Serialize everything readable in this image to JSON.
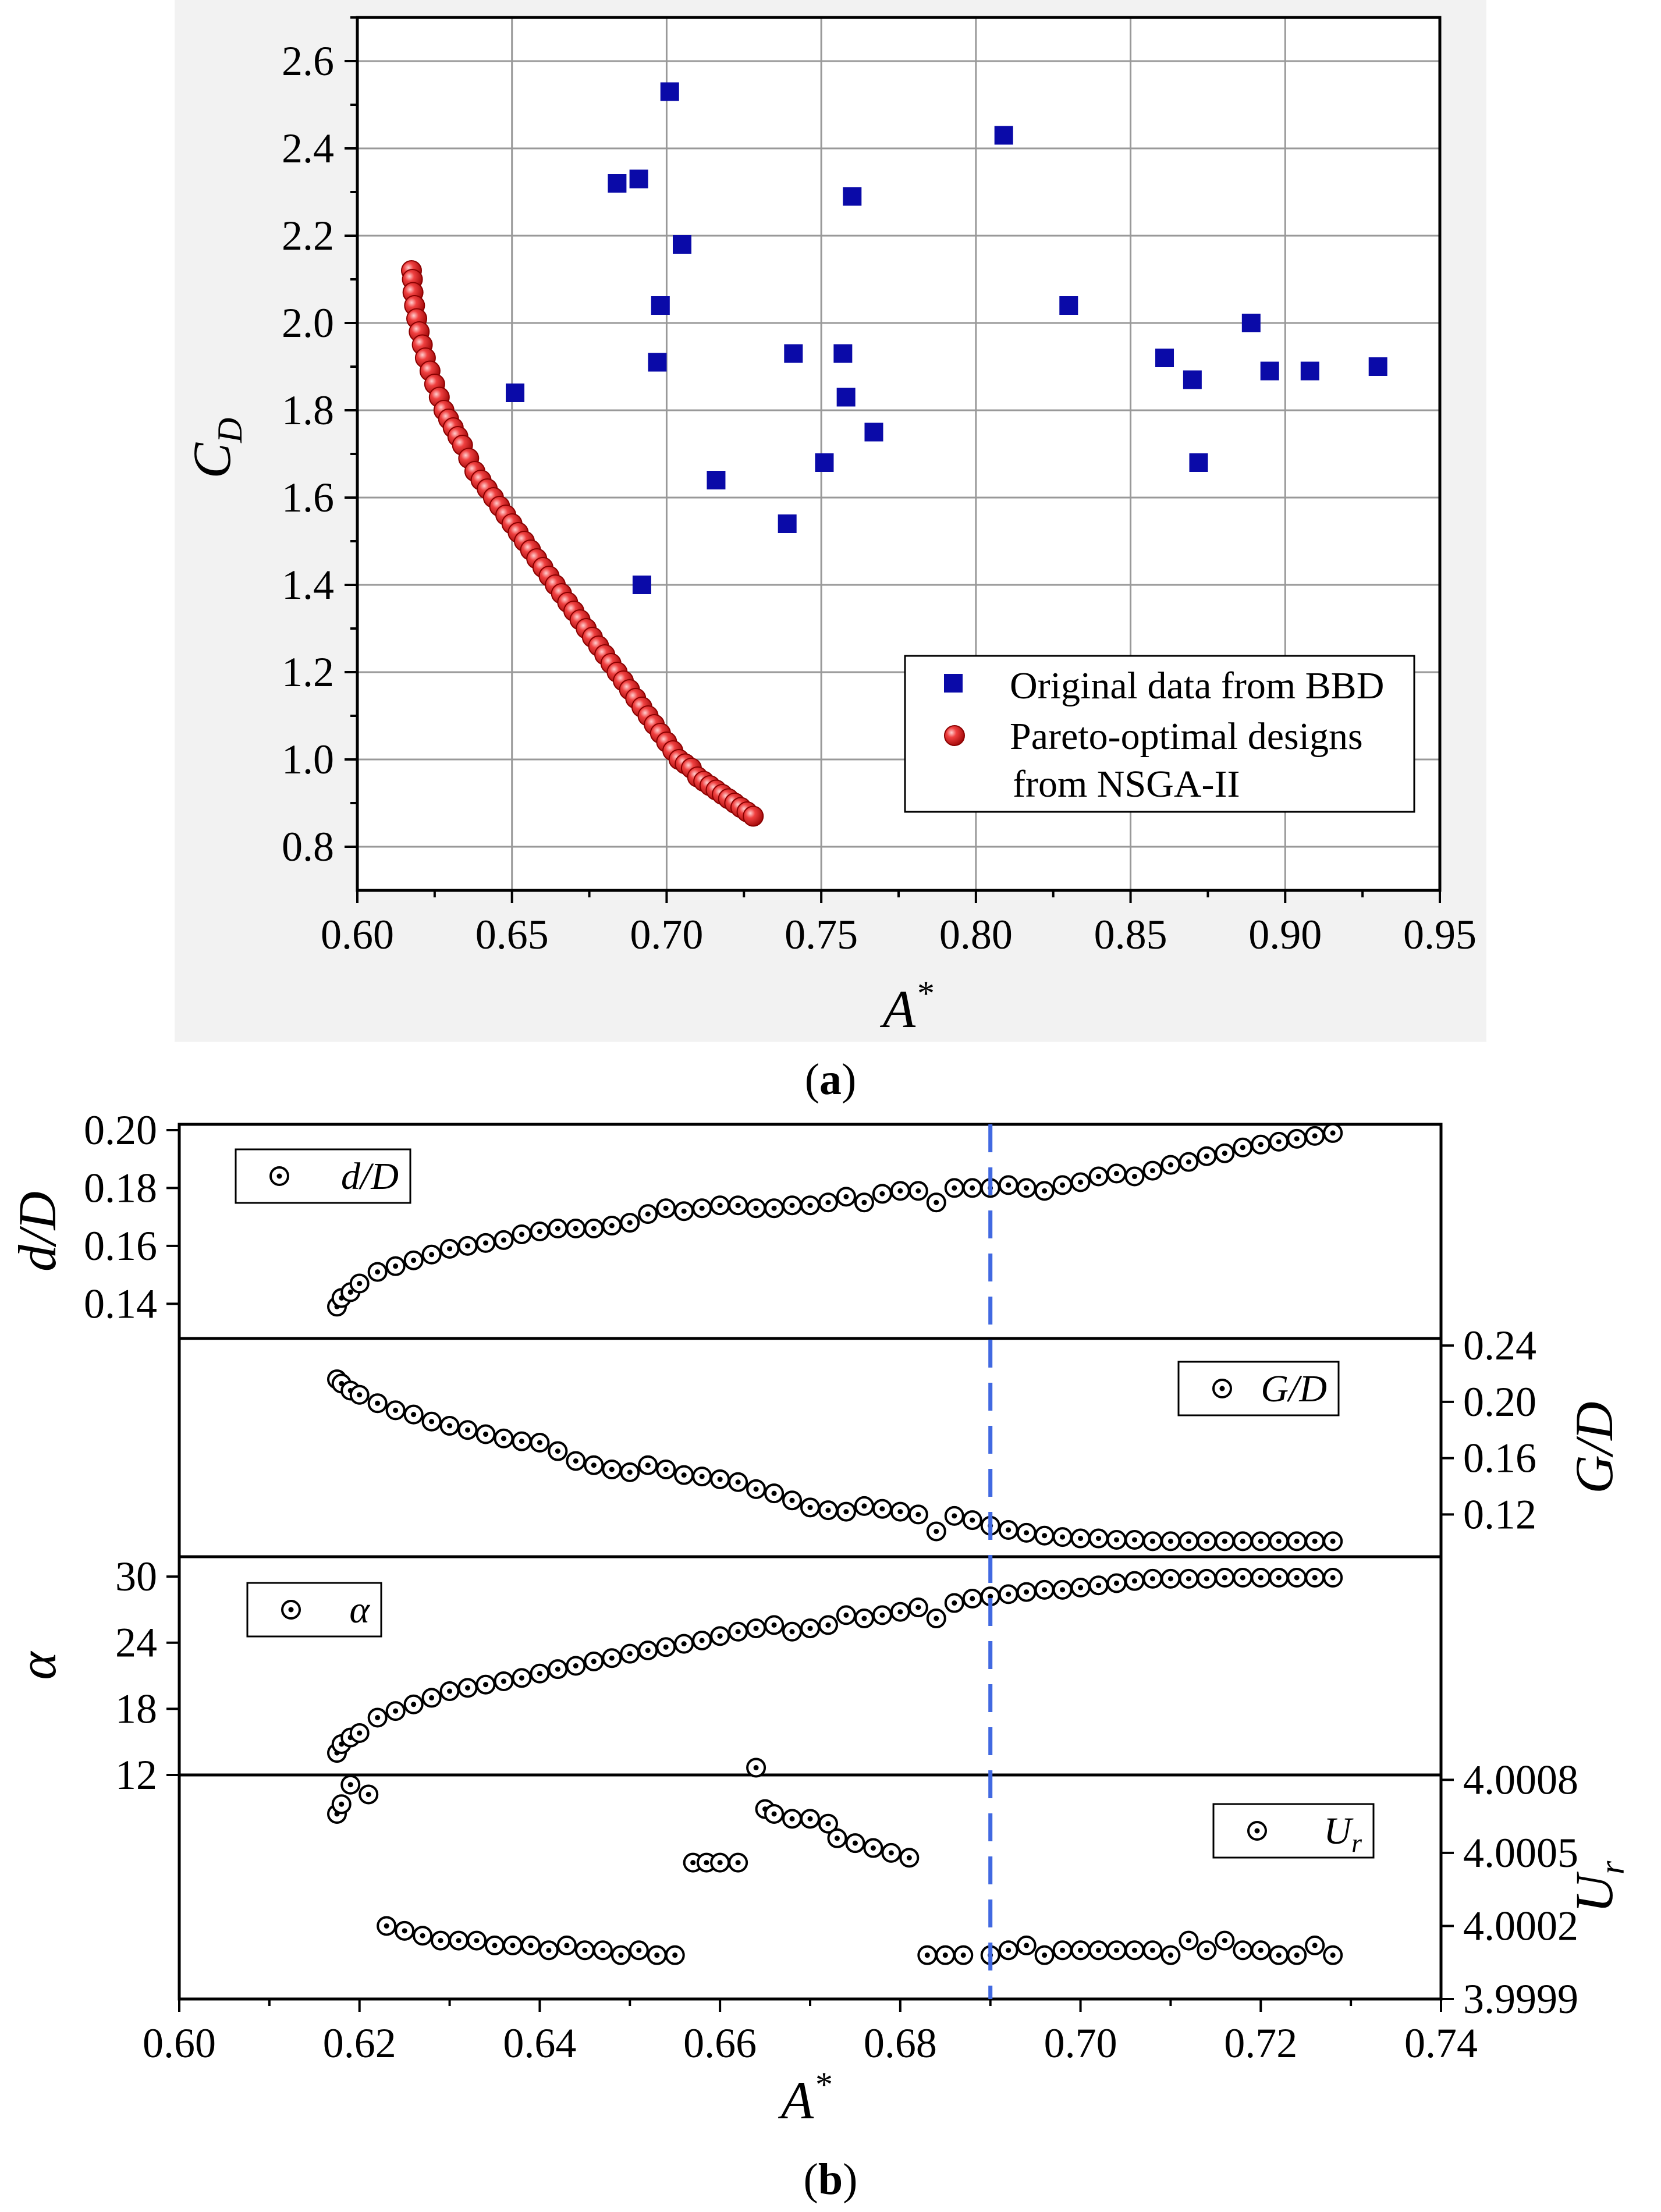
{
  "chart_data": [
    {
      "id": "a",
      "type": "scatter",
      "caption": "(a)",
      "caption_bold": "a",
      "xlabel": "A*",
      "ylabel": "CD",
      "xlim": [
        0.6,
        0.95
      ],
      "ylim": [
        0.7,
        2.7
      ],
      "xticks": [
        "0.60",
        "0.65",
        "0.70",
        "0.75",
        "0.80",
        "0.85",
        "0.90",
        "0.95"
      ],
      "yticks": [
        "0.8",
        "1.0",
        "1.2",
        "1.4",
        "1.6",
        "1.8",
        "2.0",
        "2.2",
        "2.4",
        "2.6"
      ],
      "grid": true,
      "legend_position": "bottom-right",
      "series": [
        {
          "name": "Original data from BBD",
          "marker": "square",
          "color": "#0a0aa8",
          "x": [
            0.701,
            0.809,
            0.684,
            0.691,
            0.76,
            0.705,
            0.698,
            0.83,
            0.741,
            0.757,
            0.697,
            0.651,
            0.758,
            0.767,
            0.751,
            0.716,
            0.739,
            0.692,
            0.861,
            0.87,
            0.889,
            0.895,
            0.908,
            0.93,
            0.872
          ],
          "y": [
            2.53,
            2.43,
            2.32,
            2.33,
            2.29,
            2.18,
            2.04,
            2.04,
            1.93,
            1.93,
            1.91,
            1.84,
            1.83,
            1.75,
            1.68,
            1.64,
            1.54,
            1.4,
            1.92,
            1.87,
            2.0,
            1.89,
            1.89,
            1.9,
            1.68
          ]
        },
        {
          "name": "Pareto-optimal designs from NSGA-II",
          "marker": "sphere",
          "color": "#e52222",
          "x": [
            0.6175,
            0.6178,
            0.618,
            0.6185,
            0.6192,
            0.62,
            0.621,
            0.622,
            0.6235,
            0.625,
            0.6265,
            0.628,
            0.6295,
            0.631,
            0.6325,
            0.634,
            0.636,
            0.638,
            0.64,
            0.642,
            0.644,
            0.646,
            0.648,
            0.65,
            0.652,
            0.654,
            0.656,
            0.658,
            0.66,
            0.662,
            0.664,
            0.666,
            0.668,
            0.67,
            0.672,
            0.674,
            0.676,
            0.678,
            0.68,
            0.682,
            0.684,
            0.686,
            0.688,
            0.69,
            0.692,
            0.694,
            0.696,
            0.698,
            0.7,
            0.702,
            0.704,
            0.706,
            0.708,
            0.71,
            0.712,
            0.714,
            0.716,
            0.718,
            0.72,
            0.722,
            0.724,
            0.726,
            0.728
          ],
          "y": [
            2.12,
            2.1,
            2.07,
            2.04,
            2.01,
            1.98,
            1.95,
            1.92,
            1.89,
            1.86,
            1.83,
            1.8,
            1.78,
            1.76,
            1.74,
            1.72,
            1.69,
            1.66,
            1.64,
            1.62,
            1.6,
            1.58,
            1.56,
            1.54,
            1.52,
            1.5,
            1.48,
            1.46,
            1.44,
            1.42,
            1.4,
            1.38,
            1.36,
            1.34,
            1.32,
            1.3,
            1.28,
            1.26,
            1.24,
            1.22,
            1.2,
            1.18,
            1.16,
            1.14,
            1.12,
            1.1,
            1.08,
            1.06,
            1.04,
            1.02,
            1.0,
            0.99,
            0.98,
            0.96,
            0.95,
            0.94,
            0.93,
            0.92,
            0.91,
            0.9,
            0.89,
            0.88,
            0.87
          ]
        }
      ]
    },
    {
      "id": "b",
      "type": "scatter",
      "caption": "(b)",
      "caption_bold": "b",
      "xlabel": "A*",
      "xlim": [
        0.6,
        0.74
      ],
      "xticks": [
        "0.60",
        "0.62",
        "0.64",
        "0.66",
        "0.68",
        "0.70",
        "0.72",
        "0.74"
      ],
      "reference_line": {
        "x": 0.69,
        "color": "#4169e1",
        "style": "dashed"
      },
      "panels": [
        {
          "legend": "d/D",
          "ylabel": "d/D",
          "axis_side": "left",
          "ylim": [
            0.128,
            0.202
          ],
          "yticks": [
            "0.14",
            "0.16",
            "0.18",
            "0.20"
          ],
          "x": [
            0.6175,
            0.618,
            0.619,
            0.62,
            0.622,
            0.624,
            0.626,
            0.628,
            0.63,
            0.632,
            0.634,
            0.636,
            0.638,
            0.64,
            0.642,
            0.644,
            0.646,
            0.648,
            0.65,
            0.652,
            0.654,
            0.656,
            0.658,
            0.66,
            0.662,
            0.664,
            0.666,
            0.668,
            0.67,
            0.672,
            0.674,
            0.676,
            0.678,
            0.68,
            0.682,
            0.684,
            0.686,
            0.688,
            0.69,
            0.692,
            0.694,
            0.696,
            0.698,
            0.7,
            0.702,
            0.704,
            0.706,
            0.708,
            0.71,
            0.712,
            0.714,
            0.716,
            0.718,
            0.72,
            0.722,
            0.724,
            0.726,
            0.728
          ],
          "y": [
            0.139,
            0.142,
            0.144,
            0.147,
            0.151,
            0.153,
            0.155,
            0.157,
            0.159,
            0.16,
            0.161,
            0.162,
            0.164,
            0.165,
            0.166,
            0.166,
            0.166,
            0.167,
            0.168,
            0.171,
            0.173,
            0.172,
            0.173,
            0.174,
            0.174,
            0.173,
            0.173,
            0.174,
            0.174,
            0.175,
            0.177,
            0.175,
            0.178,
            0.179,
            0.179,
            0.175,
            0.18,
            0.18,
            0.18,
            0.181,
            0.18,
            0.179,
            0.181,
            0.182,
            0.184,
            0.185,
            0.184,
            0.186,
            0.188,
            0.189,
            0.191,
            0.192,
            0.194,
            0.195,
            0.196,
            0.197,
            0.198,
            0.199
          ]
        },
        {
          "legend": "G/D",
          "ylabel": "G/D",
          "axis_side": "right",
          "ylim": [
            0.09,
            0.245
          ],
          "yticks": [
            "0.12",
            "0.16",
            "0.20",
            "0.24"
          ],
          "x": [
            0.6175,
            0.618,
            0.619,
            0.62,
            0.622,
            0.624,
            0.626,
            0.628,
            0.63,
            0.632,
            0.634,
            0.636,
            0.638,
            0.64,
            0.642,
            0.644,
            0.646,
            0.648,
            0.65,
            0.652,
            0.654,
            0.656,
            0.658,
            0.66,
            0.662,
            0.664,
            0.666,
            0.668,
            0.67,
            0.672,
            0.674,
            0.676,
            0.678,
            0.68,
            0.682,
            0.684,
            0.686,
            0.688,
            0.69,
            0.692,
            0.694,
            0.696,
            0.698,
            0.7,
            0.702,
            0.704,
            0.706,
            0.708,
            0.71,
            0.712,
            0.714,
            0.716,
            0.718,
            0.72,
            0.722,
            0.724,
            0.726,
            0.728
          ],
          "y": [
            0.216,
            0.213,
            0.208,
            0.205,
            0.199,
            0.194,
            0.191,
            0.186,
            0.183,
            0.18,
            0.177,
            0.174,
            0.172,
            0.171,
            0.165,
            0.158,
            0.155,
            0.152,
            0.15,
            0.155,
            0.152,
            0.148,
            0.147,
            0.145,
            0.143,
            0.138,
            0.135,
            0.13,
            0.125,
            0.123,
            0.122,
            0.126,
            0.124,
            0.122,
            0.12,
            0.108,
            0.119,
            0.116,
            0.112,
            0.109,
            0.107,
            0.105,
            0.104,
            0.103,
            0.103,
            0.102,
            0.102,
            0.101,
            0.101,
            0.101,
            0.101,
            0.101,
            0.101,
            0.101,
            0.101,
            0.101,
            0.101,
            0.101
          ]
        },
        {
          "legend": "α",
          "ylabel": "α",
          "axis_side": "left",
          "ylim": [
            12,
            31.8
          ],
          "yticks": [
            "12",
            "18",
            "24",
            "30"
          ],
          "x": [
            0.6175,
            0.618,
            0.619,
            0.62,
            0.622,
            0.624,
            0.626,
            0.628,
            0.63,
            0.632,
            0.634,
            0.636,
            0.638,
            0.64,
            0.642,
            0.644,
            0.646,
            0.648,
            0.65,
            0.652,
            0.654,
            0.656,
            0.658,
            0.66,
            0.662,
            0.664,
            0.666,
            0.668,
            0.67,
            0.672,
            0.674,
            0.676,
            0.678,
            0.68,
            0.682,
            0.684,
            0.686,
            0.688,
            0.69,
            0.692,
            0.694,
            0.696,
            0.698,
            0.7,
            0.702,
            0.704,
            0.706,
            0.708,
            0.71,
            0.712,
            0.714,
            0.716,
            0.718,
            0.72,
            0.722,
            0.724,
            0.726,
            0.728
          ],
          "y": [
            14.0,
            14.8,
            15.4,
            15.8,
            17.2,
            17.8,
            18.4,
            19.0,
            19.6,
            19.9,
            20.2,
            20.5,
            20.8,
            21.2,
            21.6,
            21.9,
            22.3,
            22.6,
            23.0,
            23.3,
            23.6,
            23.9,
            24.2,
            24.6,
            25.0,
            25.3,
            25.6,
            25.0,
            25.3,
            25.6,
            26.5,
            26.2,
            26.5,
            26.8,
            27.2,
            26.2,
            27.6,
            28.0,
            28.2,
            28.4,
            28.6,
            28.8,
            28.8,
            29.0,
            29.2,
            29.4,
            29.6,
            29.8,
            29.8,
            29.8,
            29.8,
            29.9,
            29.9,
            29.9,
            29.9,
            29.9,
            29.9,
            29.9
          ]
        },
        {
          "legend": "Ur",
          "ylabel": "Ur",
          "axis_side": "right",
          "ylim": [
            3.9999,
            4.00082
          ],
          "yticks": [
            "3.9999",
            "4.0002",
            "4.0005",
            "4.0008"
          ],
          "x": [
            0.6175,
            0.618,
            0.619,
            0.621,
            0.623,
            0.625,
            0.627,
            0.629,
            0.631,
            0.633,
            0.635,
            0.637,
            0.639,
            0.641,
            0.643,
            0.645,
            0.647,
            0.649,
            0.651,
            0.653,
            0.655,
            0.657,
            0.6585,
            0.66,
            0.662,
            0.664,
            0.665,
            0.666,
            0.668,
            0.67,
            0.672,
            0.673,
            0.675,
            0.677,
            0.679,
            0.681,
            0.683,
            0.685,
            0.687,
            0.69,
            0.692,
            0.694,
            0.696,
            0.698,
            0.7,
            0.702,
            0.704,
            0.706,
            0.708,
            0.71,
            0.712,
            0.714,
            0.716,
            0.718,
            0.72,
            0.722,
            0.724,
            0.726,
            0.728
          ],
          "y": [
            4.00066,
            4.0007,
            4.00078,
            4.00074,
            4.0002,
            4.00018,
            4.00016,
            4.00014,
            4.00014,
            4.00014,
            4.00012,
            4.00012,
            4.00012,
            4.0001,
            4.00012,
            4.0001,
            4.0001,
            4.00008,
            4.0001,
            4.00008,
            4.00008,
            4.00046,
            4.00046,
            4.00046,
            4.00046,
            4.00085,
            4.00068,
            4.00066,
            4.00064,
            4.00064,
            4.00062,
            4.00056,
            4.00054,
            4.00052,
            4.0005,
            4.00048,
            4.00008,
            4.00008,
            4.00008,
            4.00008,
            4.0001,
            4.00012,
            4.00008,
            4.0001,
            4.0001,
            4.0001,
            4.0001,
            4.0001,
            4.0001,
            4.00008,
            4.00014,
            4.0001,
            4.00014,
            4.0001,
            4.0001,
            4.00008,
            4.00008,
            4.00012,
            4.00008
          ]
        }
      ]
    }
  ]
}
